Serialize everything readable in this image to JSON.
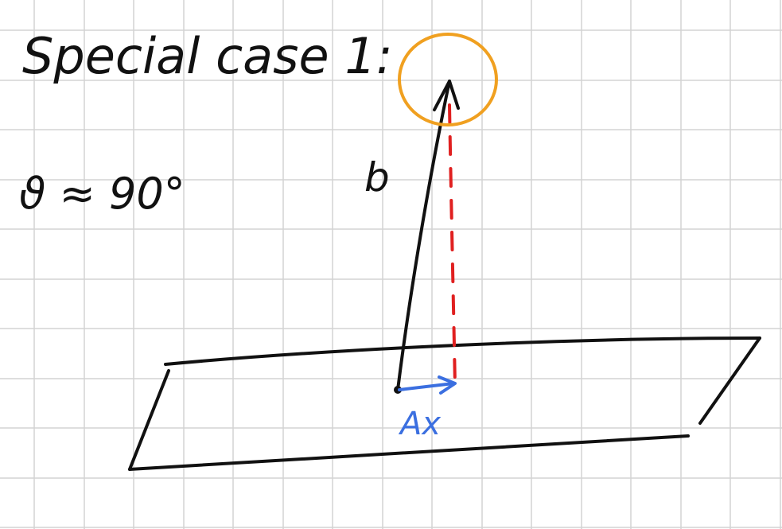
{
  "heading": "Special case 1:",
  "angle_label": "ϑ ≈ 90°",
  "vector_label": "b",
  "projection_label": "Ax",
  "colors": {
    "grid": "#d4d4d4",
    "ink": "#111111",
    "highlight_circle": "#f0a020",
    "perpendicular_dashed": "#e02020",
    "projection_vector": "#3b6fe0"
  }
}
